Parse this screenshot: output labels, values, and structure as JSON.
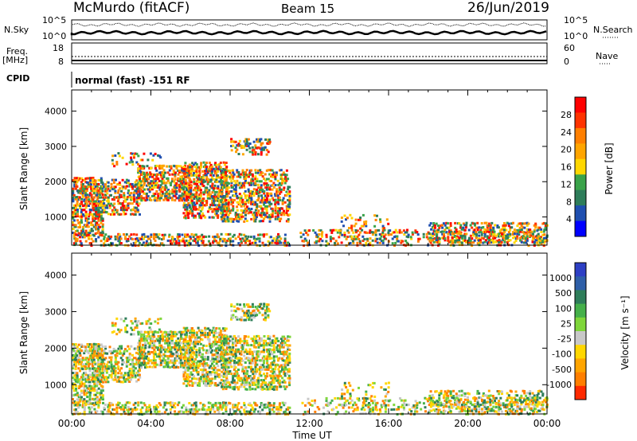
{
  "header": {
    "station": "McMurdo (fitACF)",
    "beam": "Beam 15",
    "date": "26/Jun/2019"
  },
  "noise_panel": {
    "left_label": "N.Sky",
    "right_label": "N.Search",
    "left_ticks": [
      "10^5",
      "10^0"
    ],
    "right_ticks": [
      "10^5",
      "10^0"
    ]
  },
  "freq_panel": {
    "left_label_1": "Freq.",
    "left_label_2": "[MHz]",
    "right_label": "Nave",
    "left_ticks": [
      "18",
      "8"
    ],
    "right_ticks": [
      "60",
      "0"
    ]
  },
  "cpid": {
    "label": "CPID",
    "value": "normal (fast) -151 RF"
  },
  "chart_data": [
    {
      "type": "heatmap",
      "title": "Power",
      "xlabel": "",
      "ylabel": "Slant Range [km]",
      "ylim": [
        200,
        4600
      ],
      "yticks": [
        "1000",
        "2000",
        "3000",
        "4000"
      ],
      "colorbar_label": "Power [dB]",
      "colorbar_ticks": [
        "4",
        "8",
        "12",
        "16",
        "20",
        "24",
        "28"
      ],
      "colorbar_colors": [
        "#0000ff",
        "#1f4fb0",
        "#2e7d5a",
        "#3aa34a",
        "#ffd700",
        "#ffa500",
        "#ff7f00",
        "#ff3300",
        "#ff0000"
      ]
    },
    {
      "type": "heatmap",
      "title": "Velocity",
      "xlabel": "Time UT",
      "ylabel": "Slant Range [km]",
      "ylim": [
        200,
        4600
      ],
      "yticks": [
        "1000",
        "2000",
        "3000",
        "4000"
      ],
      "xticks": [
        "00:00",
        "04:00",
        "08:00",
        "12:00",
        "16:00",
        "20:00",
        "00:00"
      ],
      "colorbar_label": "Velocity [m s⁻¹]",
      "colorbar_ticks": [
        "1000",
        "500",
        "100",
        "25",
        "-25",
        "-100",
        "-500",
        "-1000"
      ],
      "colorbar_colors": [
        "#2d3fc4",
        "#2e5fa8",
        "#2e7d5a",
        "#45b04a",
        "#7fd63a",
        "#c8c8c8",
        "#ffd700",
        "#ffa500",
        "#ff7f00",
        "#ff2a00"
      ]
    }
  ]
}
